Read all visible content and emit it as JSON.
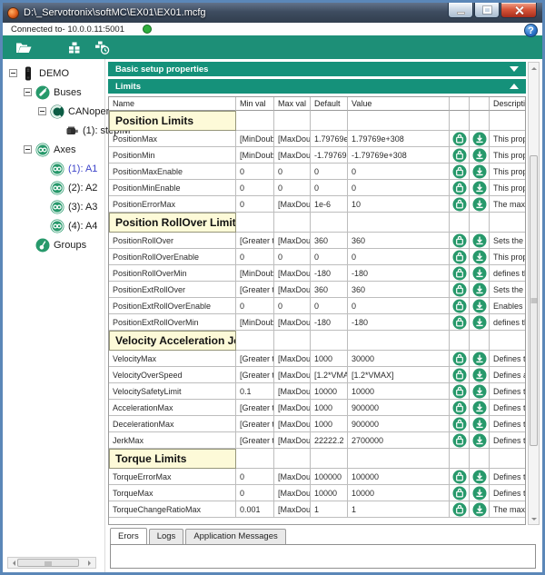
{
  "window": {
    "title": "D:\\_Servotronix\\softMC\\EX01\\EX01.mcfg",
    "help_label": "?"
  },
  "statusbar": {
    "connected_text": "Connected to- 10.0.0.11:5001"
  },
  "toolbar": {
    "buttons": [
      {
        "icon": "open-folder-icon"
      },
      {
        "icon": "modules-icon"
      },
      {
        "icon": "run-modules-icon"
      }
    ]
  },
  "tree": {
    "items": [
      {
        "label": "DEMO",
        "level": 0,
        "icon": "controller-icon",
        "expander": true,
        "selected": false
      },
      {
        "label": "Buses",
        "level": 1,
        "icon": "bus-icon",
        "expander": true,
        "selected": false
      },
      {
        "label": "CANopen",
        "level": 2,
        "icon": "canopen-icon",
        "expander": true,
        "selected": false
      },
      {
        "label": "(1): stepIM",
        "level": 3,
        "icon": "motor-icon",
        "expander": false,
        "selected": false
      },
      {
        "label": "Axes",
        "level": 1,
        "icon": "axis-icon",
        "expander": true,
        "selected": false
      },
      {
        "label": "(1): A1",
        "level": 2,
        "icon": "axis-icon",
        "expander": false,
        "selected": true
      },
      {
        "label": "(2): A2",
        "level": 2,
        "icon": "axis-icon",
        "expander": false,
        "selected": false
      },
      {
        "label": "(3): A3",
        "level": 2,
        "icon": "axis-icon",
        "expander": false,
        "selected": false
      },
      {
        "label": "(4): A4",
        "level": 2,
        "icon": "axis-icon",
        "expander": false,
        "selected": false
      },
      {
        "label": "Groups",
        "level": 1,
        "icon": "groups-icon",
        "expander": false,
        "selected": false
      }
    ]
  },
  "panel": {
    "basic_header": "Basic setup properties",
    "limits_header": "Limits"
  },
  "table": {
    "columns": [
      "Name",
      "Min val",
      "Max val",
      "Default",
      "Value",
      "",
      "",
      "Descriptio"
    ],
    "groups": [
      {
        "title": "Position Limits",
        "rows": [
          {
            "name": "PositionMax",
            "min": "[MinDoub",
            "max": "[MaxDoub",
            "def": "1.79769e+",
            "value": "1.79769e+308",
            "desc": "This prop"
          },
          {
            "name": "PositionMin",
            "min": "[MinDoub",
            "max": "[MaxDoub",
            "def": "-1.79769e",
            "value": "-1.79769e+308",
            "desc": "This prop"
          },
          {
            "name": "PositionMaxEnable",
            "min": "0",
            "max": "0",
            "def": "0",
            "value": "0",
            "desc": "This prop"
          },
          {
            "name": "PositionMinEnable",
            "min": "0",
            "max": "0",
            "def": "0",
            "value": "0",
            "desc": "This prop"
          },
          {
            "name": "PositionErrorMax",
            "min": "0",
            "max": "[MaxDoub",
            "def": "1e-6",
            "value": "10",
            "desc": "The maxir",
            "hl": "s-narrow"
          }
        ]
      },
      {
        "title": "Position RollOver Limits",
        "rows": [
          {
            "name": "PositionRollOver",
            "min": "[Greater th",
            "max": "[MaxDoub",
            "def": "360",
            "value": "360",
            "desc": "Sets the r"
          },
          {
            "name": "PositionRollOverEnable",
            "min": "0",
            "max": "0",
            "def": "0",
            "value": "0",
            "desc": "This prop"
          },
          {
            "name": "PositionRollOverMin",
            "min": "[MinDoub",
            "max": "[MaxDoub",
            "def": "-180",
            "value": "-180",
            "desc": "defines th"
          },
          {
            "name": "PositionExtRollOver",
            "min": "[Greater th",
            "max": "[MaxDoub",
            "def": "360",
            "value": "360",
            "desc": "Sets the r"
          },
          {
            "name": "PositionExtRollOverEnable",
            "min": "0",
            "max": "0",
            "def": "0",
            "value": "0",
            "desc": "Enables o"
          },
          {
            "name": "PositionExtRollOverMin",
            "min": "[MinDoub",
            "max": "[MaxDoub",
            "def": "-180",
            "value": "-180",
            "desc": "defines th"
          }
        ]
      },
      {
        "title": "Velocity Acceleration Jer",
        "rows": [
          {
            "name": "VelocityMax",
            "min": "[Greater th",
            "max": "[MaxDoub",
            "def": "1000",
            "value": "30000",
            "desc": "Defines th",
            "hl": "s-wide"
          },
          {
            "name": "VelocityOverSpeed",
            "min": "[Greater th",
            "max": "[MaxDoub",
            "def": "[1.2*VMA",
            "value": "[1.2*VMAX]",
            "desc": "Defines ar"
          },
          {
            "name": "VelocitySafetyLimit",
            "min": "0.1",
            "max": "[MaxDoub",
            "def": "10000",
            "value": "10000",
            "desc": "Defines th"
          },
          {
            "name": "AccelerationMax",
            "min": "[Greater th",
            "max": "[MaxDoub",
            "def": "1000",
            "value": "900000",
            "desc": "Defines th",
            "hl": "top"
          },
          {
            "name": "DecelerationMax",
            "min": "[Greater th",
            "max": "[MaxDoub",
            "def": "1000",
            "value": "900000",
            "desc": "Defines th",
            "hl": "mid"
          },
          {
            "name": "JerkMax",
            "min": "[Greater th",
            "max": "[MaxDoub",
            "def": "22222.2",
            "value": "2700000",
            "desc": "Defines th",
            "hl": "bottom"
          }
        ]
      },
      {
        "title": "Torque Limits",
        "rows": [
          {
            "name": "TorqueErrorMax",
            "min": "0",
            "max": "[MaxDoub",
            "def": "100000",
            "value": "100000",
            "desc": "Defines th"
          },
          {
            "name": "TorqueMax",
            "min": "0",
            "max": "[MaxDoub",
            "def": "10000",
            "value": "10000",
            "desc": "Defines th"
          },
          {
            "name": "TorqueChangeRatioMax",
            "min": "0.001",
            "max": "[MaxDoub",
            "def": "1",
            "value": "1",
            "desc": "The maxir"
          }
        ]
      }
    ],
    "row_actions": [
      "upload-icon",
      "download-icon"
    ]
  },
  "tabs": [
    {
      "label": "Erors",
      "active": true
    },
    {
      "label": "Logs",
      "active": false
    },
    {
      "label": "Application Messages",
      "active": false
    }
  ],
  "colors": {
    "teal": "#1d8f77",
    "header_teal": "#15917a",
    "icon_green": "#27996b",
    "highlight_green": "#1ea31e",
    "group_row_bg": "#fdfad8",
    "selected_tree_text": "#3d44c9",
    "connected_dot": "#2fae3e"
  }
}
